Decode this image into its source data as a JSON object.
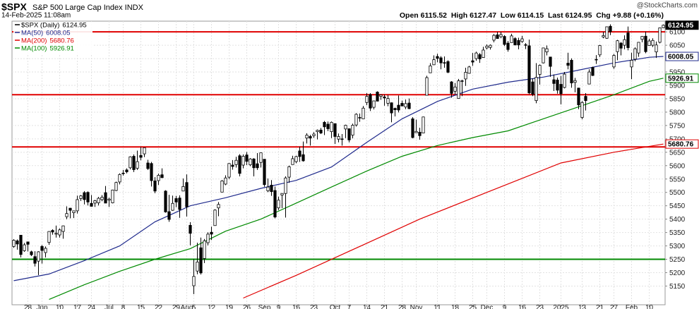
{
  "chart_data": {
    "type": "candlestick",
    "title": "$SPX",
    "subtitle": "S&P 500 Large Cap Index INDX",
    "date": "14-Feb-2025 11:08am",
    "quote": "Open 6115.52  High 6127.47  Low 6114.15  Last 6124.95  Chg +9.88 (+0.16%)",
    "credit": "@StockCharts.com",
    "xlim": [
      -0.5,
      184.5
    ],
    "ylim": [
      5080,
      6140
    ],
    "xticks": [
      {
        "value": 4,
        "label": "28"
      },
      {
        "value": 8,
        "label": "Jun"
      },
      {
        "value": 13,
        "label": "10"
      },
      {
        "value": 18,
        "label": "17"
      },
      {
        "value": 22,
        "label": "24"
      },
      {
        "value": 27,
        "label": "Jul"
      },
      {
        "value": 31,
        "label": "8"
      },
      {
        "value": 36,
        "label": "15"
      },
      {
        "value": 41,
        "label": "22"
      },
      {
        "value": 46,
        "label": "29"
      },
      {
        "value": 49,
        "label": "Aug"
      },
      {
        "value": 51,
        "label": "5"
      },
      {
        "value": 56,
        "label": "12"
      },
      {
        "value": 61,
        "label": "19"
      },
      {
        "value": 66,
        "label": "26"
      },
      {
        "value": 71,
        "label": "Sep"
      },
      {
        "value": 75,
        "label": "9"
      },
      {
        "value": 80,
        "label": "16"
      },
      {
        "value": 85,
        "label": "23"
      },
      {
        "value": 91,
        "label": "Oct"
      },
      {
        "value": 95,
        "label": "7"
      },
      {
        "value": 100,
        "label": "14"
      },
      {
        "value": 105,
        "label": "21"
      },
      {
        "value": 110,
        "label": "28"
      },
      {
        "value": 114,
        "label": "Nov"
      },
      {
        "value": 120,
        "label": "11"
      },
      {
        "value": 125,
        "label": "18"
      },
      {
        "value": 130,
        "label": "25"
      },
      {
        "value": 134,
        "label": "Dec"
      },
      {
        "value": 139,
        "label": "9"
      },
      {
        "value": 144,
        "label": "16"
      },
      {
        "value": 149,
        "label": "23"
      },
      {
        "value": 155,
        "label": "2025"
      },
      {
        "value": 161,
        "label": "13"
      },
      {
        "value": 166,
        "label": "21"
      },
      {
        "value": 170,
        "label": "27"
      },
      {
        "value": 175,
        "label": "Feb"
      },
      {
        "value": 180,
        "label": "10"
      }
    ],
    "yticks": [
      5150,
      5200,
      5250,
      5300,
      5350,
      5400,
      5450,
      5500,
      5550,
      5600,
      5650,
      5700,
      5750,
      5800,
      5850,
      5900,
      5950,
      6000,
      6050,
      6100
    ],
    "grid": true,
    "levels": [
      {
        "value": 6100,
        "color": "#e00000"
      },
      {
        "value": 5865,
        "color": "#e00000"
      },
      {
        "value": 5670,
        "color": "#e00000"
      },
      {
        "value": 5250,
        "color": "#008a00"
      }
    ],
    "ohlc": {
      "name": "$SPX (Daily)",
      "last_label": "6124.95",
      "color": "#000000",
      "open": [
        5298,
        5319,
        5340,
        5282,
        5315,
        5278,
        5260,
        5243,
        5298,
        5275,
        5313,
        5358,
        5344,
        5341,
        5354,
        5409,
        5441,
        5424,
        5431,
        5477,
        5499,
        5500,
        5459,
        5460,
        5461,
        5473,
        5499,
        5471,
        5461,
        5507,
        5539,
        5572,
        5584,
        5592,
        5635,
        5590,
        5638,
        5644,
        5610,
        5608,
        5543,
        5544,
        5566,
        5505,
        5428,
        5433,
        5477,
        5479,
        5505,
        5537,
        5377,
        5151,
        5206,
        5293,
        5253,
        5312,
        5351,
        5376,
        5442,
        5501,
        5531,
        5557,
        5602,
        5604,
        5637,
        5602,
        5640,
        5603,
        5625,
        5607,
        5612,
        5624,
        5506,
        5527,
        5507,
        5442,
        5490,
        5496,
        5557,
        5604,
        5615,
        5655,
        5641,
        5703,
        5709,
        5712,
        5727,
        5733,
        5762,
        5755,
        5727,
        5757,
        5699,
        5698,
        5737,
        5738,
        5714,
        5752,
        5778,
        5775,
        5836,
        5866,
        5818,
        5875,
        5859,
        5857,
        5833,
        5835,
        5814,
        5826,
        5833,
        5819,
        5834,
        5775,
        5723,
        5725,
        5722,
        5863,
        5947,
        5977,
        6008,
        6003,
        5985,
        5989,
        5913,
        5878,
        5851,
        5917,
        5924,
        5945,
        5992,
        6000,
        6015,
        6004,
        6040,
        6042,
        6069,
        6089,
        6082,
        6083,
        6058,
        6060,
        6075,
        6068,
        6064,
        6052,
        6048,
        5913,
        5843,
        5941,
        5984,
        6025,
        6006,
        5921,
        5920,
        5904,
        5892,
        5983,
        5994,
        5911,
        5890,
        5780,
        5859,
        5905,
        5967,
        5995,
        6014,
        6081,
        6076,
        6121,
        5969,
        6026,
        6058,
        6050,
        6096,
        5969,
        5998,
        6021,
        6072,
        6084,
        6049,
        6050,
        6025,
        6061,
        6115.52
      ],
      "high": [
        5325,
        5324,
        5341,
        5311,
        5316,
        5282,
        5280,
        5280,
        5303,
        5298,
        5355,
        5362,
        5376,
        5365,
        5376,
        5448,
        5442,
        5432,
        5488,
        5490,
        5505,
        5504,
        5490,
        5472,
        5483,
        5490,
        5524,
        5480,
        5510,
        5540,
        5571,
        5584,
        5590,
        5635,
        5642,
        5656,
        5670,
        5667,
        5622,
        5614,
        5557,
        5570,
        5590,
        5508,
        5491,
        5488,
        5487,
        5489,
        5552,
        5567,
        5389,
        5250,
        5312,
        5331,
        5326,
        5351,
        5372,
        5437,
        5464,
        5546,
        5564,
        5609,
        5621,
        5633,
        5643,
        5642,
        5651,
        5628,
        5628,
        5647,
        5648,
        5624,
        5552,
        5546,
        5522,
        5484,
        5497,
        5560,
        5600,
        5637,
        5637,
        5671,
        5690,
        5721,
        5715,
        5725,
        5735,
        5741,
        5767,
        5765,
        5765,
        5757,
        5720,
        5718,
        5753,
        5739,
        5757,
        5796,
        5795,
        5823,
        5871,
        5871,
        5843,
        5878,
        5865,
        5866,
        5864,
        5836,
        5817,
        5862,
        5843,
        5847,
        5851,
        5781,
        5772,
        5742,
        5783,
        5936,
        5983,
        6012,
        6018,
        6009,
        6008,
        5994,
        5916,
        5909,
        5924,
        5921,
        5966,
        5973,
        6021,
        6026,
        6021,
        6044,
        6053,
        6053,
        6092,
        6100,
        6100,
        6088,
        6066,
        6093,
        6080,
        6078,
        6085,
        6058,
        6071,
        5926,
        5983,
        5978,
        6040,
        6049,
        6007,
        5941,
        5929,
        5935,
        5950,
        6022,
        6001,
        5928,
        5891,
        5841,
        5871,
        5960,
        5970,
        6013,
        6051,
        6100,
        6119,
        6128,
        6017,
        6070,
        6062,
        6087,
        6120,
        6022,
        6042,
        6062,
        6084,
        6101,
        6074,
        6076,
        6064,
        6116,
        6127.47
      ],
      "low": [
        5293,
        5286,
        5257,
        5278,
        5279,
        5262,
        5223,
        5191,
        5234,
        5257,
        5304,
        5342,
        5331,
        5331,
        5327,
        5400,
        5403,
        5404,
        5421,
        5468,
        5455,
        5451,
        5447,
        5446,
        5451,
        5467,
        5460,
        5446,
        5459,
        5505,
        5530,
        5563,
        5571,
        5586,
        5576,
        5584,
        5620,
        5632,
        5584,
        5522,
        5497,
        5528,
        5554,
        5424,
        5390,
        5431,
        5445,
        5405,
        5505,
        5410,
        5302,
        5120,
        5194,
        5193,
        5236,
        5302,
        5322,
        5376,
        5411,
        5501,
        5527,
        5550,
        5585,
        5593,
        5560,
        5590,
        5602,
        5598,
        5560,
        5584,
        5593,
        5521,
        5501,
        5487,
        5403,
        5434,
        5441,
        5406,
        5536,
        5604,
        5609,
        5614,
        5615,
        5683,
        5675,
        5704,
        5698,
        5718,
        5714,
        5729,
        5703,
        5681,
        5687,
        5675,
        5703,
        5687,
        5702,
        5746,
        5764,
        5775,
        5826,
        5804,
        5810,
        5840,
        5846,
        5824,
        5822,
        5762,
        5784,
        5799,
        5823,
        5811,
        5811,
        5702,
        5723,
        5697,
        5722,
        5863,
        5947,
        5976,
        5986,
        5960,
        5966,
        5946,
        5854,
        5865,
        5850,
        5860,
        5898,
        5944,
        5973,
        5992,
        5984,
        6003,
        6035,
        6034,
        6061,
        6074,
        6076,
        6047,
        6026,
        6060,
        6050,
        6035,
        6059,
        6036,
        5867,
        5860,
        5833,
        5903,
        5982,
        6012,
        5932,
        5879,
        5869,
        5829,
        5889,
        5960,
        5891,
        5874,
        5811,
        5773,
        5806,
        5905,
        5935,
        5980,
        6006,
        6076,
        6074,
        6088,
        5962,
        5994,
        6012,
        6035,
        6031,
        5923,
        5990,
        6007,
        6061,
        6020,
        6049,
        6043,
        6003,
        6057,
        6114.15
      ],
      "close": [
        5321,
        5307,
        5268,
        5304,
        5306,
        5267,
        5235,
        5278,
        5283,
        5291,
        5354,
        5352,
        5347,
        5360,
        5375,
        5421,
        5433,
        5431,
        5473,
        5487,
        5473,
        5464,
        5448,
        5469,
        5478,
        5482,
        5460,
        5475,
        5509,
        5537,
        5567,
        5572,
        5577,
        5633,
        5585,
        5615,
        5631,
        5667,
        5589,
        5544,
        5505,
        5564,
        5555,
        5427,
        5399,
        5459,
        5464,
        5436,
        5522,
        5446,
        5347,
        5186,
        5240,
        5199,
        5319,
        5344,
        5344,
        5434,
        5455,
        5543,
        5554,
        5608,
        5597,
        5620,
        5571,
        5635,
        5616,
        5625,
        5592,
        5592,
        5648,
        5529,
        5520,
        5503,
        5408,
        5471,
        5496,
        5554,
        5596,
        5626,
        5634,
        5634,
        5618,
        5714,
        5703,
        5718,
        5732,
        5722,
        5745,
        5738,
        5762,
        5709,
        5709,
        5700,
        5751,
        5696,
        5751,
        5792,
        5780,
        5815,
        5859,
        5815,
        5842,
        5841,
        5864,
        5853,
        5851,
        5797,
        5809,
        5808,
        5823,
        5832,
        5813,
        5705,
        5728,
        5712,
        5782,
        5929,
        5973,
        5996,
        6001,
        5984,
        5985,
        5949,
        5870,
        5894,
        5917,
        5917,
        5949,
        5969,
        5987,
        6021,
        5999,
        6032,
        6047,
        6050,
        6087,
        6075,
        6090,
        6053,
        6034,
        6085,
        6051,
        6051,
        6074,
        6050,
        5872,
        5867,
        5930,
        5975,
        6040,
        6037,
        5971,
        5907,
        5882,
        5869,
        5942,
        5975,
        5909,
        5918,
        5827,
        5836,
        5843,
        5950,
        5937,
        5997,
        6049,
        6086,
        6119,
        6101,
        6012,
        6067,
        6039,
        6071,
        6041,
        5994,
        6037,
        6061,
        6083,
        6026,
        6066,
        6068,
        6051,
        6115,
        6124.95
      ]
    },
    "series": [
      {
        "name": "MA(50)",
        "last_label": "6008.05",
        "color": "#1f2a8c",
        "x": [
          0,
          10,
          20,
          30,
          40,
          50,
          60,
          70,
          80,
          90,
          100,
          110,
          120,
          130,
          140,
          150,
          160,
          170,
          180,
          184
        ],
        "values": [
          5170,
          5195,
          5245,
          5300,
          5390,
          5450,
          5480,
          5515,
          5545,
          5595,
          5687,
          5775,
          5840,
          5886,
          5912,
          5931,
          5957,
          5984,
          6005,
          6008.05
        ]
      },
      {
        "name": "MA(200)",
        "last_label": "5680.76",
        "color": "#e00000",
        "x": [
          65,
          80,
          100,
          115,
          134,
          155,
          170,
          184
        ],
        "values": [
          5105,
          5190,
          5310,
          5400,
          5500,
          5610,
          5650,
          5680.76
        ]
      },
      {
        "name": "MA(100)",
        "last_label": "5926.91",
        "color": "#008a00",
        "x": [
          10,
          20,
          30,
          40,
          50,
          60,
          70,
          80,
          90,
          100,
          110,
          120,
          130,
          140,
          150,
          160,
          170,
          180,
          184
        ],
        "values": [
          5100,
          5155,
          5205,
          5250,
          5290,
          5355,
          5400,
          5460,
          5520,
          5580,
          5635,
          5675,
          5705,
          5730,
          5775,
          5820,
          5865,
          5915,
          5926.91
        ]
      }
    ]
  }
}
